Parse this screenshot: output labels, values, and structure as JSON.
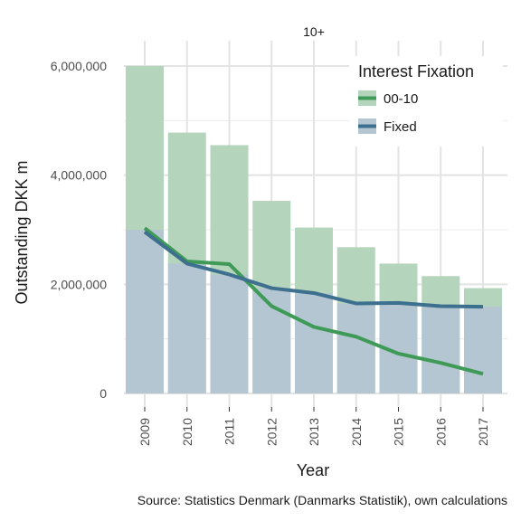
{
  "chart_data": {
    "type": "bar",
    "facet_title": "10+",
    "xlabel": "Year",
    "ylabel": "Outstanding DKK m",
    "caption": "Source: Statistics Denmark (Danmarks Statistik), own calculations",
    "categories": [
      "2009",
      "2010",
      "2011",
      "2012",
      "2013",
      "2014",
      "2015",
      "2016",
      "2017"
    ],
    "ylim": [
      0,
      6000000
    ],
    "yticks": [
      0,
      2000000,
      4000000,
      6000000
    ],
    "ytick_labels": [
      "0",
      "2,000,000",
      "4,000,000",
      "6,000,000"
    ],
    "grid": true,
    "legend": {
      "title": "Interest Fixation",
      "position": "top-right",
      "entries": [
        "00-10",
        "Fixed"
      ]
    },
    "bar_series": [
      {
        "name": "00-10",
        "color": "#b5d4bc",
        "values": [
          6000000,
          4780000,
          4550000,
          3530000,
          3040000,
          2680000,
          2380000,
          2150000,
          1930000
        ]
      },
      {
        "name": "Fixed",
        "color": "#b3c6d1",
        "values": [
          3000000,
          2380000,
          2180000,
          1930000,
          1840000,
          1650000,
          1660000,
          1600000,
          1590000
        ]
      }
    ],
    "line_series": [
      {
        "name": "00-10",
        "color": "#3e9a56",
        "values": [
          3030000,
          2420000,
          2370000,
          1600000,
          1220000,
          1040000,
          730000,
          560000,
          360000
        ]
      },
      {
        "name": "Fixed",
        "color": "#3d6f8e",
        "values": [
          2960000,
          2380000,
          2180000,
          1930000,
          1840000,
          1650000,
          1660000,
          1600000,
          1590000
        ]
      }
    ]
  }
}
